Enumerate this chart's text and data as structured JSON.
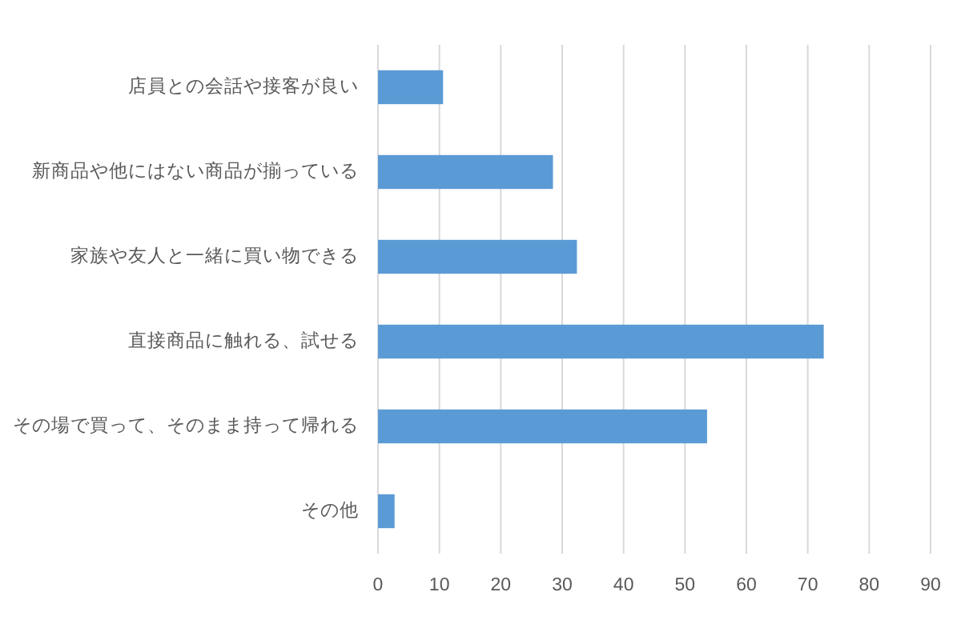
{
  "chart_data": {
    "type": "bar",
    "orientation": "horizontal",
    "categories": [
      "店員との会話や接客が良い",
      "新商品や他にはない商品が揃っている",
      "家族や友人と一緒に買い物できる",
      "直接商品に触れる、試せる",
      "その場で買って、そのまま持って帰れる",
      "その他"
    ],
    "values": [
      10.6,
      28.5,
      32.4,
      72.6,
      53.6,
      2.7
    ],
    "color": "#5b9bd5",
    "xlim": [
      0,
      90
    ],
    "xticks": [
      0,
      10,
      20,
      30,
      40,
      50,
      60,
      70,
      80,
      90
    ],
    "grid": "x"
  }
}
